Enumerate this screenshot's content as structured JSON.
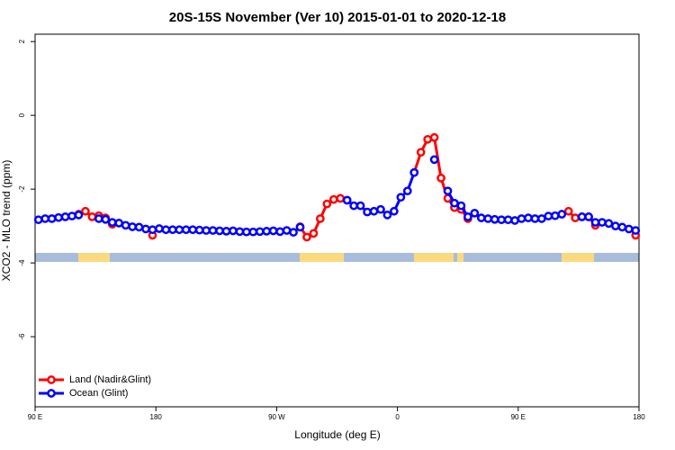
{
  "chart_data": {
    "type": "line",
    "title": "20S-15S November (Ver 10)   2015-01-01 to 2020-12-18",
    "x_label": "Longitude (deg E)",
    "y_label": "XCO2 - MLO trend (ppm)",
    "x": [
      92.5,
      97.5,
      102.5,
      107.5,
      112.5,
      117.5,
      122.5,
      127.5,
      132.5,
      137.5,
      142.5,
      147.5,
      152.5,
      157.5,
      162.5,
      167.5,
      172.5,
      177.5,
      182.5,
      187.5,
      192.5,
      197.5,
      202.5,
      207.5,
      212.5,
      217.5,
      222.5,
      227.5,
      232.5,
      237.5,
      242.5,
      247.5,
      252.5,
      257.5,
      262.5,
      267.5,
      272.5,
      277.5,
      282.5,
      287.5,
      292.5,
      297.5,
      302.5,
      307.5,
      312.5,
      317.5,
      322.5,
      327.5,
      332.5,
      337.5,
      342.5,
      347.5,
      352.5,
      357.5,
      362.5,
      367.5,
      372.5,
      377.5,
      382.5,
      387.5,
      392.5,
      397.5,
      402.5,
      407.5,
      412.5,
      417.5,
      422.5,
      427.5,
      432.5,
      437.5,
      442.5,
      447.5,
      452.5,
      457.5,
      462.5,
      467.5,
      472.5,
      477.5,
      482.5,
      487.5,
      492.5,
      497.5,
      502.5,
      507.5,
      512.5,
      517.5,
      522.5,
      527.5,
      532.5,
      537.5
    ],
    "series": [
      {
        "name": "Land (Nadir&Glint)",
        "color": "#ff0000",
        "values": [
          null,
          null,
          null,
          null,
          null,
          null,
          -2.68,
          -2.6,
          -2.75,
          -2.72,
          -2.78,
          -2.95,
          null,
          null,
          null,
          null,
          null,
          -3.25,
          null,
          null,
          null,
          null,
          null,
          null,
          null,
          null,
          null,
          null,
          null,
          null,
          null,
          null,
          null,
          null,
          null,
          null,
          null,
          null,
          null,
          -3.02,
          -3.3,
          -3.2,
          -2.8,
          -2.4,
          -2.28,
          -2.25,
          -2.3,
          null,
          null,
          null,
          null,
          null,
          null,
          null,
          null,
          null,
          -1.55,
          -1.0,
          -0.65,
          -0.6,
          -1.7,
          -2.25,
          -2.5,
          -2.55,
          -2.8,
          null,
          null,
          null,
          null,
          null,
          null,
          null,
          null,
          null,
          null,
          null,
          null,
          null,
          null,
          -2.6,
          -2.78,
          -2.75,
          -2.75,
          -2.98,
          null,
          null,
          null,
          null,
          null,
          -3.25
        ]
      },
      {
        "name": "Ocean (Glint)",
        "color": "#0000ff",
        "values": [
          -2.83,
          -2.8,
          -2.8,
          -2.77,
          -2.75,
          -2.73,
          -2.7,
          null,
          null,
          -2.8,
          -2.82,
          -2.9,
          -2.92,
          -2.98,
          -3.02,
          -3.03,
          -3.08,
          -3.1,
          -3.07,
          -3.1,
          -3.1,
          -3.1,
          -3.1,
          -3.1,
          -3.11,
          -3.12,
          -3.12,
          -3.13,
          -3.14,
          -3.13,
          -3.15,
          -3.16,
          -3.16,
          -3.15,
          -3.14,
          -3.13,
          -3.15,
          -3.12,
          -3.17,
          -3.03,
          null,
          null,
          null,
          null,
          null,
          null,
          -2.3,
          -2.45,
          -2.45,
          -2.62,
          -2.6,
          -2.55,
          -2.7,
          -2.6,
          -2.22,
          -2.05,
          -1.55,
          null,
          null,
          -1.2,
          null,
          -2.05,
          -2.38,
          -2.45,
          -2.75,
          -2.65,
          -2.78,
          -2.8,
          -2.82,
          -2.83,
          -2.83,
          -2.85,
          -2.8,
          -2.78,
          -2.8,
          -2.8,
          -2.73,
          -2.72,
          -2.68,
          null,
          null,
          -2.75,
          -2.75,
          -2.9,
          -2.9,
          -2.93,
          -3.0,
          -3.03,
          -3.08,
          -3.12
        ]
      }
    ],
    "xlim": [
      90,
      540
    ],
    "xticks": [
      {
        "value": 90,
        "label": "90 E"
      },
      180,
      {
        "value": 270,
        "label": "90 W"
      },
      {
        "value": 360,
        "label": "0"
      },
      {
        "value": 450,
        "label": "90 E"
      },
      {
        "value": 540,
        "label": "180"
      }
    ],
    "ylim": [
      -7.9,
      2.2
    ],
    "yticks": [
      -6,
      -4,
      -2,
      0,
      2
    ],
    "legend": "bottom-left"
  }
}
